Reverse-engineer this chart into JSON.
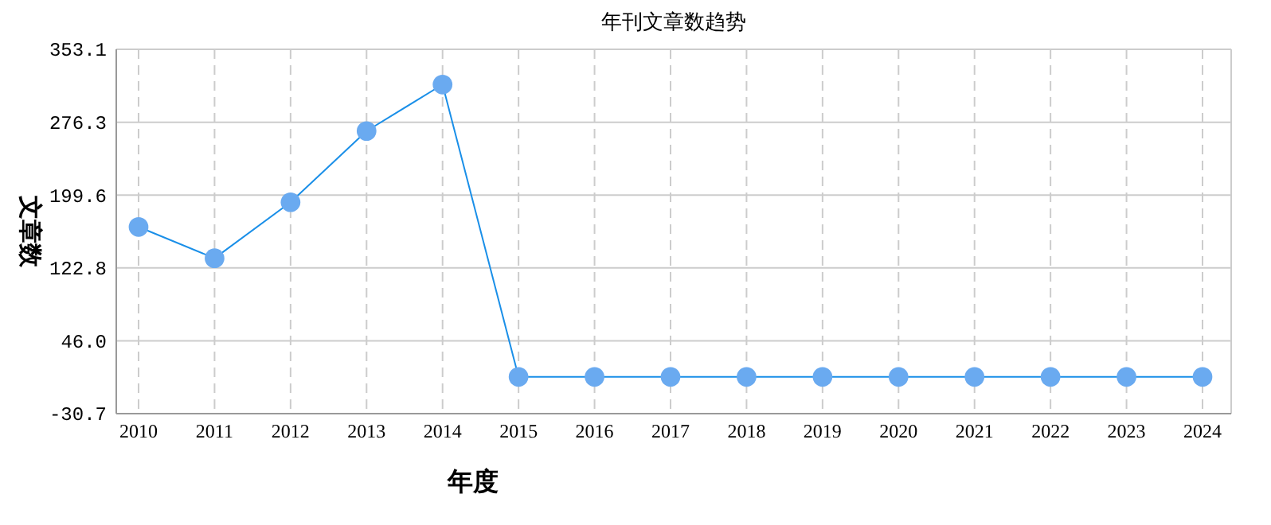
{
  "chart_data": {
    "type": "line",
    "title": "年刊文章数趋势",
    "xlabel": "年度",
    "ylabel": "文章数",
    "categories": [
      "2010",
      "2011",
      "2012",
      "2013",
      "2014",
      "2015",
      "2016",
      "2017",
      "2018",
      "2019",
      "2020",
      "2021",
      "2022",
      "2023",
      "2024"
    ],
    "series": [
      {
        "color": "#1a8fe8",
        "values": [
          166,
          133,
          192,
          267,
          316,
          8,
          8,
          8,
          8,
          8,
          8,
          8,
          8,
          8,
          8
        ]
      }
    ],
    "ylim": [
      -30.7,
      353.1
    ],
    "yticks": [
      {
        "value": -30.7,
        "label": "-30.7"
      },
      {
        "value": 46,
        "label": "46.0"
      },
      {
        "value": 122.8,
        "label": "122.8"
      },
      {
        "value": 199.6,
        "label": "199.6"
      },
      {
        "value": 276.3,
        "label": "276.3"
      },
      {
        "value": 353.1,
        "label": "353.1"
      }
    ],
    "grid": true,
    "marker": "circle"
  }
}
